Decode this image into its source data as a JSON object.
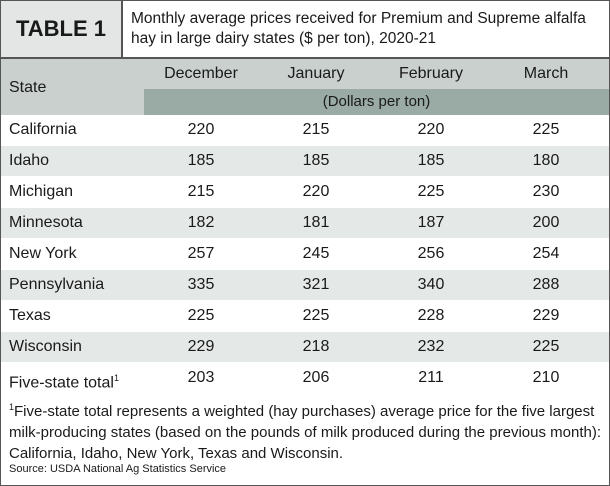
{
  "header": {
    "label": "TABLE 1",
    "title": "Monthly average prices received for Premium and Supreme alfalfa hay in large dairy states ($ per ton), 2020-21"
  },
  "table": {
    "columns": [
      "State",
      "December",
      "January",
      "February",
      "March"
    ],
    "units": "(Dollars per ton)",
    "rows": [
      [
        "California",
        220,
        215,
        220,
        225
      ],
      [
        "Idaho",
        185,
        185,
        185,
        180
      ],
      [
        "Michigan",
        215,
        220,
        225,
        230
      ],
      [
        "Minnesota",
        182,
        181,
        187,
        200
      ],
      [
        "New York",
        257,
        245,
        256,
        254
      ],
      [
        "Pennsylvania",
        335,
        321,
        340,
        288
      ],
      [
        "Texas",
        225,
        225,
        228,
        229
      ],
      [
        "Wisconsin",
        229,
        218,
        232,
        225
      ],
      [
        "Five-state total",
        203,
        206,
        211,
        210
      ]
    ],
    "total_marker": "1"
  },
  "footnote": {
    "marker": "1",
    "text": "Five-state total represents a weighted (hay purchases) average price for the five largest milk-producing states (based on the pounds of milk produced during the previous month): California, Idaho, New York, Texas and Wisconsin."
  },
  "source": "Source: USDA National Ag Statistics Service"
}
